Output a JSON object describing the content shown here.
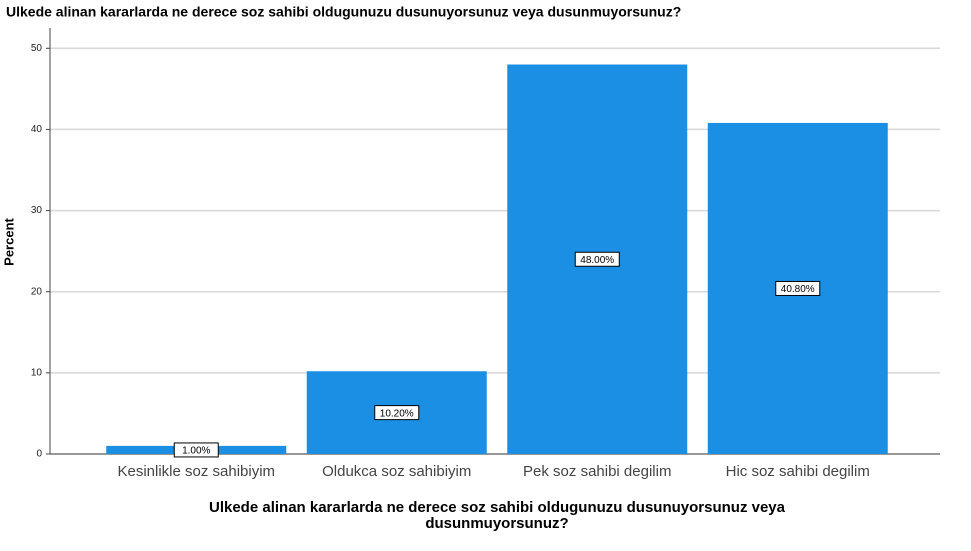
{
  "chart_data": {
    "type": "bar",
    "title": "Ulkede alinan kararlarda ne derece soz sahibi oldugunuzu dusunuyorsunuz veya dusunmuyorsunuz?",
    "x_label": "Ulkede alinan kararlarda ne derece soz sahibi oldugunuzu dusunuyorsunuz veya dusunmuyorsunuz?",
    "y_label": "Percent",
    "categories": [
      "Kesinlikle soz sahibiyim",
      "Oldukca soz sahibiyim",
      "Pek soz sahibi degilim",
      "Hic soz sahibi degilim"
    ],
    "values": [
      1.0,
      10.2,
      48.0,
      40.8
    ],
    "value_labels": [
      "1.00%",
      "10.20%",
      "48.00%",
      "40.80%"
    ],
    "color": "#1a8fe3",
    "ylim": [
      0,
      52.5
    ],
    "yticks": [
      0,
      10,
      20,
      30,
      40,
      50
    ],
    "grid": true
  }
}
